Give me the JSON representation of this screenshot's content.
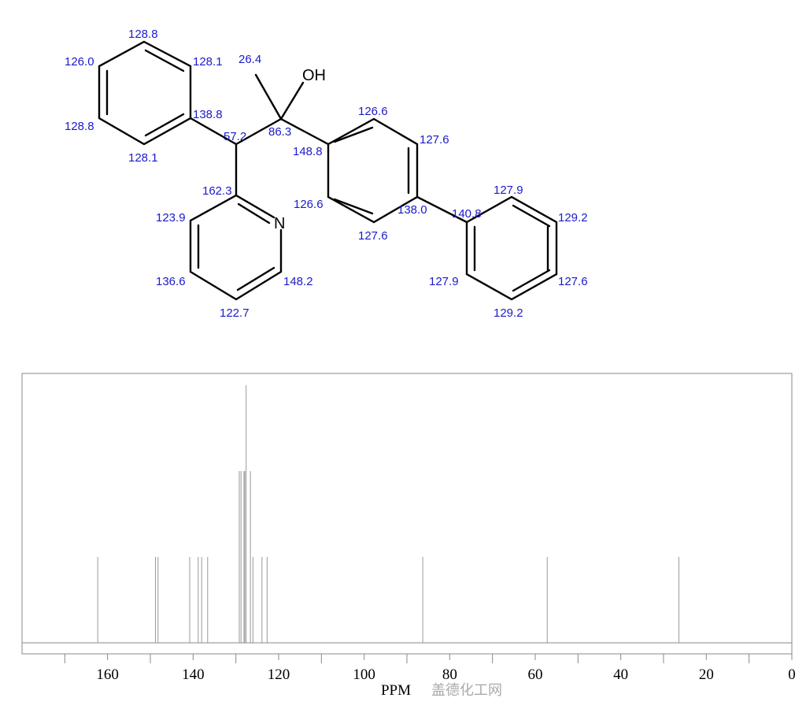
{
  "structure": {
    "atoms": {
      "oh": "OH",
      "n": "N"
    },
    "labels": [
      "128.8",
      "126.0",
      "128.1",
      "128.8",
      "138.8",
      "128.1",
      "26.4",
      "57.2",
      "86.3",
      "148.8",
      "126.6",
      "127.6",
      "162.3",
      "123.9",
      "126.6",
      "138.0",
      "140.8",
      "127.6",
      "127.9",
      "129.2",
      "136.6",
      "148.2",
      "127.9",
      "127.6",
      "122.7",
      "129.2"
    ]
  },
  "watermark": "盖德化工网",
  "chart_data": {
    "type": "bar",
    "title": "",
    "xlabel": "PPM",
    "ylabel": "",
    "xlim": [
      180,
      0
    ],
    "x_reversed": true,
    "grid": false,
    "xticks": [
      160,
      140,
      120,
      100,
      80,
      60,
      40,
      20,
      0
    ],
    "minor_ticks": [
      170,
      150,
      130,
      110,
      90,
      70,
      50,
      30,
      10
    ],
    "peaks": [
      {
        "shift": 162.3,
        "intensity": 1
      },
      {
        "shift": 148.8,
        "intensity": 1
      },
      {
        "shift": 148.2,
        "intensity": 1
      },
      {
        "shift": 140.8,
        "intensity": 1
      },
      {
        "shift": 138.8,
        "intensity": 1
      },
      {
        "shift": 138.0,
        "intensity": 1
      },
      {
        "shift": 136.6,
        "intensity": 1
      },
      {
        "shift": 129.2,
        "intensity": 2
      },
      {
        "shift": 128.8,
        "intensity": 2
      },
      {
        "shift": 128.1,
        "intensity": 2
      },
      {
        "shift": 127.9,
        "intensity": 2
      },
      {
        "shift": 127.6,
        "intensity": 3
      },
      {
        "shift": 126.6,
        "intensity": 2
      },
      {
        "shift": 126.0,
        "intensity": 1
      },
      {
        "shift": 123.9,
        "intensity": 1
      },
      {
        "shift": 122.7,
        "intensity": 1
      },
      {
        "shift": 86.3,
        "intensity": 1
      },
      {
        "shift": 57.2,
        "intensity": 1
      },
      {
        "shift": 26.4,
        "intensity": 1
      }
    ]
  }
}
